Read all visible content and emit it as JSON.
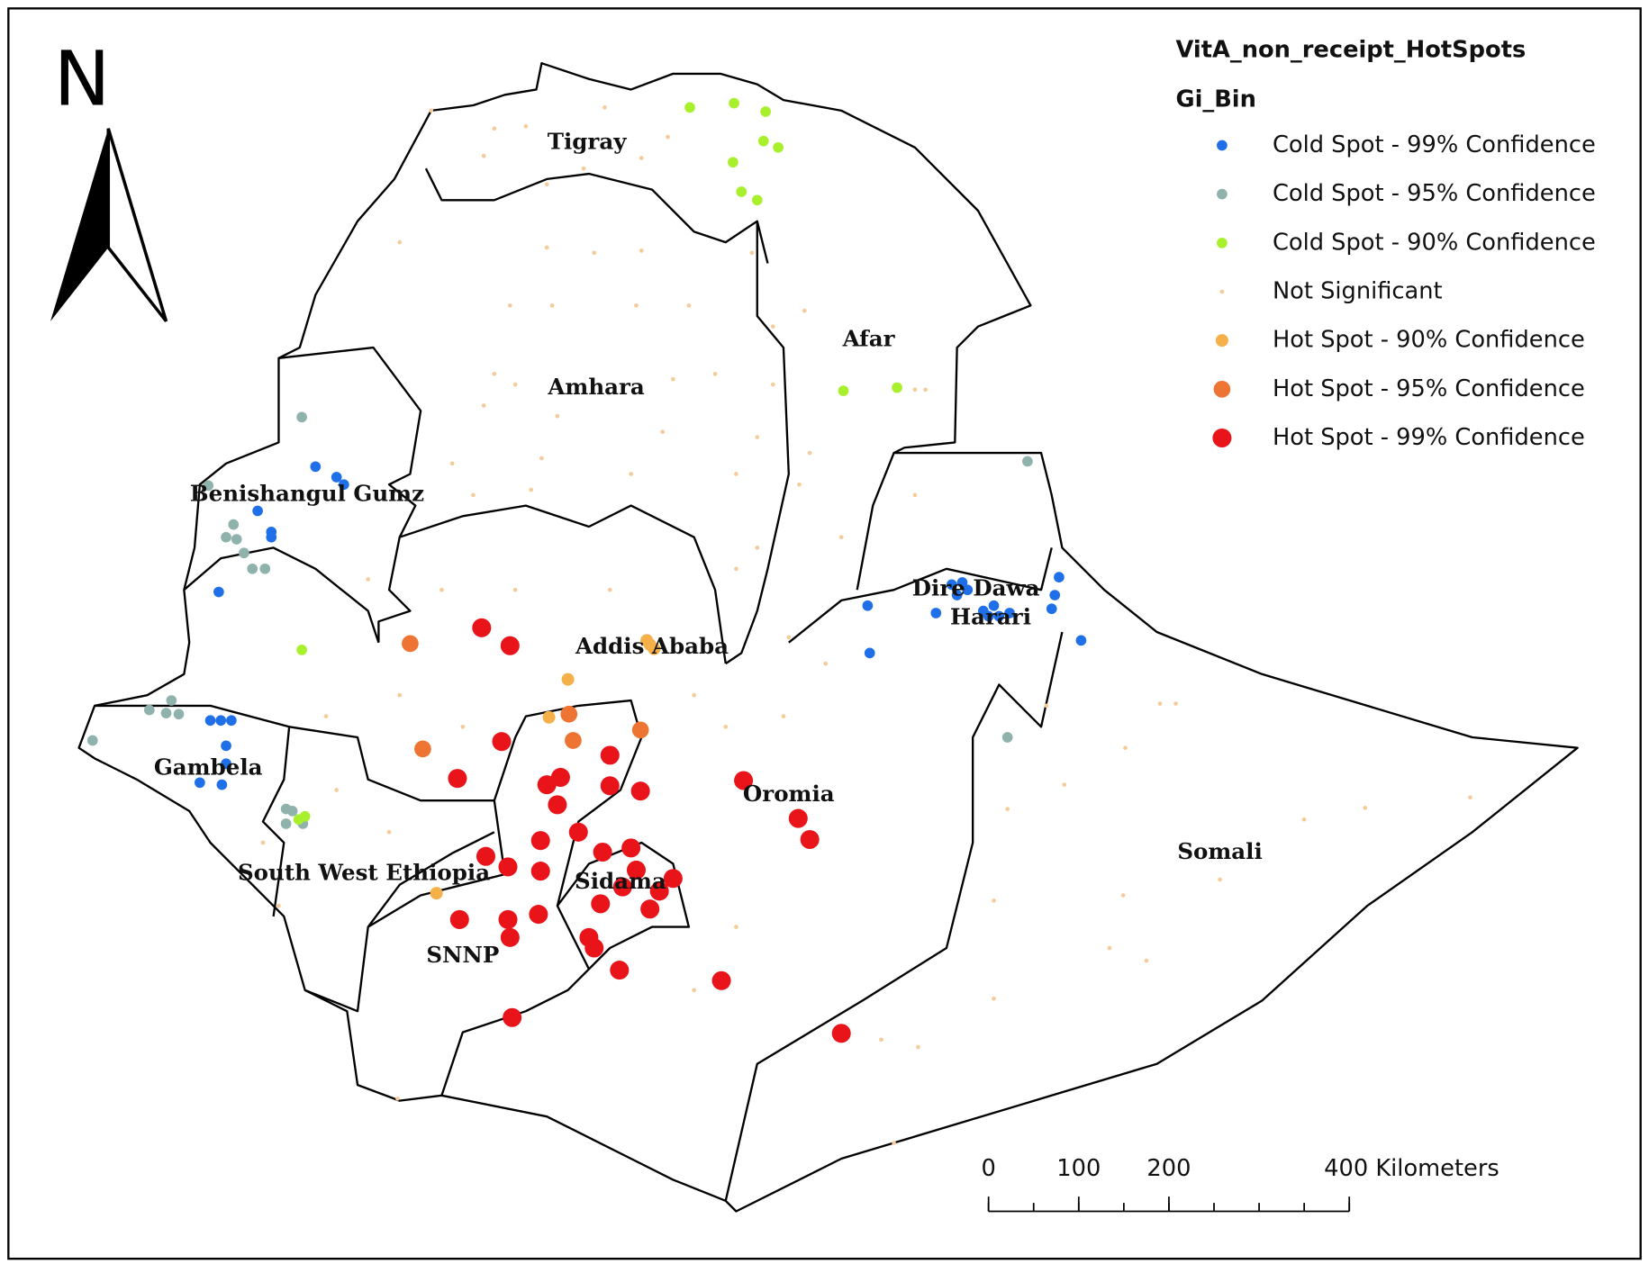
{
  "map": {
    "north_label": "N",
    "legend": {
      "title": "VitA_non_receipt_HotSpots",
      "subtitle": "Gi_Bin",
      "entries": [
        {
          "label": "Cold Spot - 99% Confidence",
          "color": "#1f6fe8"
        },
        {
          "label": "Cold Spot - 95% Confidence",
          "color": "#8fb3ac"
        },
        {
          "label": "Cold Spot - 90% Confidence",
          "color": "#a8f02c"
        },
        {
          "label": "Not Significant",
          "color": "#f6cb9a"
        },
        {
          "label": "Hot Spot - 90% Confidence",
          "color": "#f5b04a"
        },
        {
          "label": "Hot Spot - 95% Confidence",
          "color": "#ee7433"
        },
        {
          "label": "Hot Spot - 99% Confidence",
          "color": "#e8141a"
        }
      ]
    },
    "regions": [
      "Tigray",
      "Afar",
      "Amhara",
      "Benishangul Gumz",
      "Dire Dawa",
      "Harari",
      "Addis Ababa",
      "Gambela",
      "Oromia",
      "Somali",
      "South West Ethiopia",
      "Sidama",
      "SNNP"
    ],
    "scale_bar": {
      "ticks": [
        0,
        100,
        200,
        {
          "value": 400,
          "label": "400 Kilometers"
        }
      ]
    }
  }
}
